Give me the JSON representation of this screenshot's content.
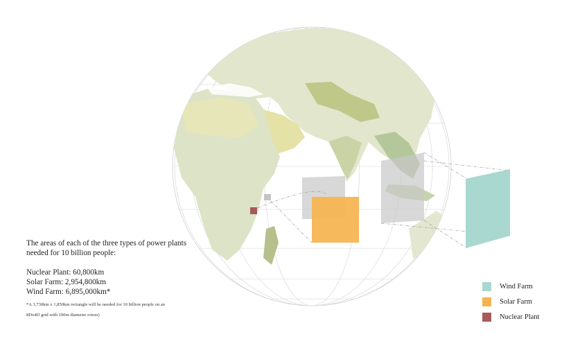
{
  "caption": {
    "intro": "The areas of each of the three types of power plants needed for 10 billion people:",
    "stats": [
      "Nuclear Plant: 60,800km",
      "Solar Farm: 2,954,800km",
      "Wind Farm: 6,895,000km*"
    ],
    "note": "*A 3,730km x 1,850km rectangle will be needed for 10 billion people on an 8Dx4D grid with 100m diameter rotors)"
  },
  "legend": [
    {
      "label": "Wind Farm",
      "color": "#a8d8d0"
    },
    {
      "label": "Solar Farm",
      "color": "#f5b450"
    },
    {
      "label": "Nuclear Plant",
      "color": "#a65a5a"
    }
  ],
  "colors": {
    "land": "#dfe5c8",
    "land_dark": "#b7bf8e",
    "desert": "#e7e39a",
    "ocean": "#ffffff",
    "graticule": "#d7d7d7",
    "projection_square": "#c8c8c8",
    "wind": "#a8d8d0",
    "solar": "#f5b450",
    "nuclear": "#a65a5a"
  }
}
